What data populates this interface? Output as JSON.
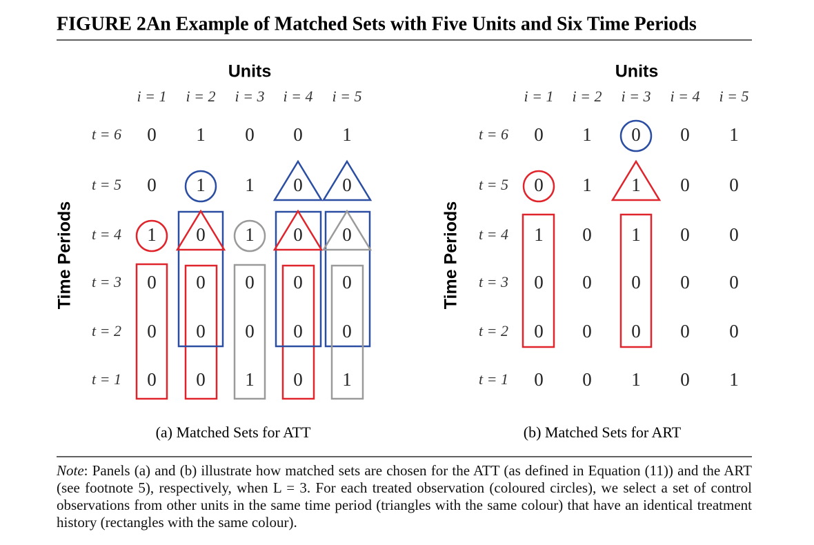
{
  "figure_label": "FIGURE 2",
  "title": "An Example of Matched Sets with Five Units and Six Time Periods",
  "panels": [
    {
      "units_label": "Units",
      "time_label": "Time Periods",
      "columns": [
        "i = 1",
        "i = 2",
        "i = 3",
        "i = 4",
        "i = 5"
      ],
      "rows": [
        "t = 6",
        "t = 5",
        "t = 4",
        "t = 3",
        "t = 2",
        "t = 1"
      ],
      "values": [
        [
          0,
          1,
          0,
          0,
          1
        ],
        [
          0,
          1,
          1,
          0,
          0
        ],
        [
          1,
          0,
          1,
          0,
          0
        ],
        [
          0,
          0,
          0,
          0,
          0
        ],
        [
          0,
          0,
          0,
          0,
          0
        ],
        [
          0,
          0,
          1,
          0,
          1
        ]
      ],
      "caption": "(a) Matched Sets for ATT"
    },
    {
      "units_label": "Units",
      "time_label": "Time Periods",
      "columns": [
        "i = 1",
        "i = 2",
        "i = 3",
        "i = 4",
        "i = 5"
      ],
      "rows": [
        "t = 6",
        "t = 5",
        "t = 4",
        "t = 3",
        "t = 2",
        "t = 1"
      ],
      "values": [
        [
          0,
          1,
          0,
          0,
          1
        ],
        [
          0,
          1,
          1,
          0,
          0
        ],
        [
          1,
          0,
          1,
          0,
          0
        ],
        [
          0,
          0,
          0,
          0,
          0
        ],
        [
          0,
          0,
          0,
          0,
          0
        ],
        [
          0,
          0,
          1,
          0,
          1
        ]
      ],
      "caption": "(b) Matched Sets for ART"
    }
  ],
  "note_label": "Note",
  "note": ": Panels (a) and (b) illustrate how matched sets are chosen for the ATT (as defined in Equation (11)) and the ART (see footnote 5), respectively, when L = 3. For each treated observation (coloured circles), we select a set of control observations from other units in the same time period (triangles with the same colour) that have an identical treatment history (rectangles with the same colour)."
}
